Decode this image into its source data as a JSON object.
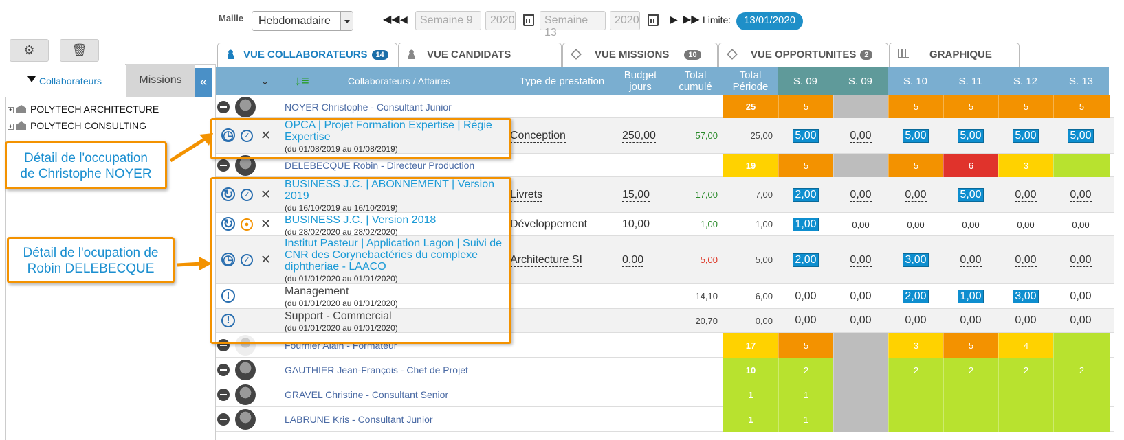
{
  "toolbar": {
    "maille_label": "Maille",
    "maille_value": "Hebdomadaire",
    "start_week": "Semaine 9",
    "start_year": "2020",
    "end_week": "Semaine 13",
    "end_year": "2020",
    "limite_label": "Limite:",
    "limite_value": "13/01/2020"
  },
  "left": {
    "tab_collab": "Collaborateurs",
    "tab_missions": "Missions",
    "tree": [
      "POLYTECH ARCHITECTURE",
      "POLYTECH CONSULTING"
    ]
  },
  "tabs": [
    {
      "label": "VUE COLLABORATEURS",
      "count": "14"
    },
    {
      "label": "VUE CANDIDATS",
      "count": ""
    },
    {
      "label": "VUE MISSIONS",
      "count": "10"
    },
    {
      "label": "VUE OPPORTUNITES",
      "count": "2"
    },
    {
      "label": "GRAPHIQUE",
      "count": ""
    }
  ],
  "headers": {
    "collab": "Collaborateurs / Affaires",
    "type": "Type de prestation",
    "budget": "Budget jours",
    "total_cumule": "Total cumulé",
    "total_periode": "Total Période",
    "weeks": [
      "S. 09",
      "S. 09",
      "S. 10",
      "S. 11",
      "S. 12",
      "S. 13"
    ]
  },
  "people": [
    {
      "name": "NOYER Christophe - Consultant Junior",
      "total": "25",
      "weeks": [
        "5",
        "",
        "5",
        "5",
        "5",
        "5"
      ]
    },
    {
      "name": "DELEBECQUE Robin - Directeur Production",
      "total": "19",
      "weeks": [
        "5",
        "",
        "5",
        "6",
        "3",
        ""
      ]
    },
    {
      "name": "Fournier Alain - Formateur",
      "total": "17",
      "weeks": [
        "5",
        "",
        "3",
        "5",
        "4",
        ""
      ]
    },
    {
      "name": "GAUTHIER Jean-François - Chef de Projet",
      "total": "10",
      "weeks": [
        "2",
        "",
        "2",
        "2",
        "2",
        "2"
      ]
    },
    {
      "name": "GRAVEL Christine - Consultant Senior",
      "total": "1",
      "weeks": [
        "1",
        "",
        "",
        "",
        "",
        ""
      ]
    },
    {
      "name": "LABRUNE Kris - Consultant Junior",
      "total": "1",
      "weeks": [
        "1",
        "",
        "",
        "",
        "",
        ""
      ]
    }
  ],
  "tasks": [
    {
      "title1": "OPCA | Projet Formation Expertise | Régie",
      "title2": "Expertise",
      "title3": "",
      "dates": "(du 01/08/2019 au 01/08/2019)",
      "type": "Conception",
      "budget": "250,00",
      "cumul": "57,00",
      "periode": "25,00",
      "weeks": [
        "5,00",
        "0,00",
        "5,00",
        "5,00",
        "5,00",
        "5,00"
      ]
    },
    {
      "title1": "BUSINESS J.C. | ABONNEMENT | Version",
      "title2": "2019",
      "title3": "",
      "dates": "(du 16/10/2019 au 16/10/2019)",
      "type": "Livrets",
      "budget": "15,00",
      "cumul": "17,00",
      "periode": "7,00",
      "weeks": [
        "2,00",
        "0,00",
        "0,00",
        "5,00",
        "0,00",
        "0,00"
      ]
    },
    {
      "title1": "BUSINESS J.C. | Version 2018",
      "title2": "",
      "title3": "",
      "dates": "(du 28/02/2020 au 28/02/2020)",
      "type": "Développement",
      "budget": "10,00",
      "cumul": "1,00",
      "periode": "1,00",
      "weeks": [
        "1,00",
        "0,00",
        "0,00",
        "0,00",
        "0,00",
        "0,00"
      ]
    },
    {
      "title1": "Institut Pasteur | Application Lagon | Suivi de",
      "title2": "CNR des Corynebactéries du complexe",
      "title3": "diphtheriae - LAACO",
      "dates": "(du 01/01/2020 au 01/01/2020)",
      "type": "Architecture SI",
      "budget": "0,00",
      "cumul": "5,00",
      "periode": "5,00",
      "weeks": [
        "2,00",
        "0,00",
        "3,00",
        "0,00",
        "0,00",
        "0,00"
      ]
    },
    {
      "title1": "Management",
      "title2": "",
      "title3": "",
      "dates": "(du 01/01/2020 au 01/01/2020)",
      "type": "",
      "budget": "",
      "cumul": "14,10",
      "periode": "6,00",
      "weeks": [
        "0,00",
        "0,00",
        "2,00",
        "1,00",
        "3,00",
        "0,00"
      ]
    },
    {
      "title1": "Support - Commercial",
      "title2": "",
      "title3": "",
      "dates": "(du 01/01/2020 au 01/01/2020)",
      "type": "",
      "budget": "",
      "cumul": "20,70",
      "periode": "0,00",
      "weeks": [
        "0,00",
        "0,00",
        "0,00",
        "0,00",
        "0,00",
        "0,00"
      ]
    }
  ],
  "callouts": {
    "c1_line1": "Détail de l'occupation",
    "c1_line2": "de Christophe NOYER",
    "c2_line1": "Détail de l'ocupation de",
    "c2_line2": "Robin DELEBECQUE"
  },
  "colors": {
    "accent": "#1e8fc8",
    "header": "#7aaed0",
    "orange": "#f39200",
    "yellow": "#ffd200",
    "lime": "#b8e22f",
    "red": "#e0332c"
  }
}
